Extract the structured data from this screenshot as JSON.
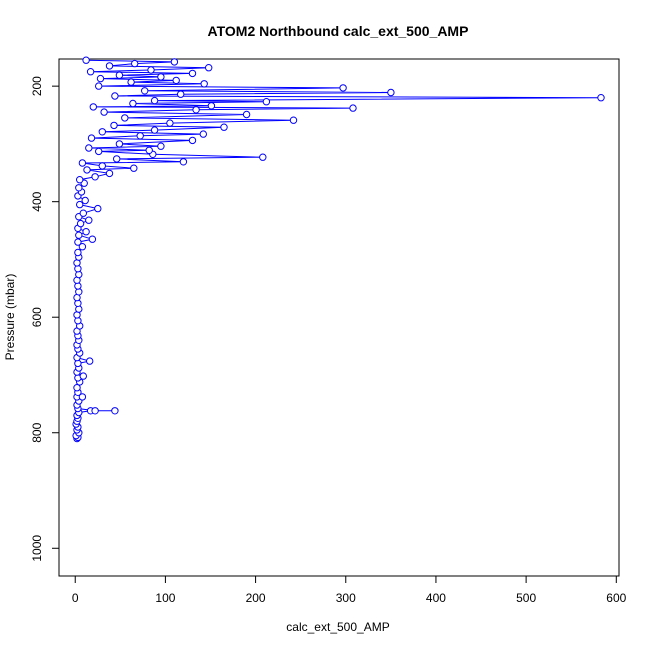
{
  "chart_data": {
    "type": "scatter",
    "title": "ATOM2 Northbound calc_ext_500_AMP",
    "xlabel": "calc_ext_500_AMP",
    "ylabel": "Pressure (mbar)",
    "xlim": [
      -18,
      603
    ],
    "ylim": [
      1048,
      153
    ],
    "y_inverted": true,
    "x_ticks": [
      0,
      100,
      200,
      300,
      400,
      500,
      600
    ],
    "y_ticks": [
      200,
      400,
      600,
      800,
      1000
    ],
    "grid": false,
    "legend": "none",
    "marker": "open-circle",
    "connected": true,
    "color": "#0000ff",
    "series": [
      {
        "points": [
          [
            2,
            810
          ],
          [
            3,
            808
          ],
          [
            1,
            805
          ],
          [
            4,
            800
          ],
          [
            2,
            795
          ],
          [
            3,
            790
          ],
          [
            1,
            785
          ],
          [
            2,
            780
          ],
          [
            3,
            775
          ],
          [
            2,
            770
          ],
          [
            4,
            765
          ],
          [
            17,
            762
          ],
          [
            44,
            762
          ],
          [
            22,
            762
          ],
          [
            3,
            758
          ],
          [
            2,
            752
          ],
          [
            4,
            745
          ],
          [
            2,
            738
          ],
          [
            8,
            738
          ],
          [
            3,
            730
          ],
          [
            2,
            722
          ],
          [
            5,
            712
          ],
          [
            3,
            705
          ],
          [
            9,
            702
          ],
          [
            2,
            695
          ],
          [
            4,
            688
          ],
          [
            3,
            680
          ],
          [
            16,
            676
          ],
          [
            2,
            670
          ],
          [
            5,
            662
          ],
          [
            3,
            655
          ],
          [
            2,
            648
          ],
          [
            4,
            640
          ],
          [
            3,
            632
          ],
          [
            2,
            624
          ],
          [
            5,
            615
          ],
          [
            3,
            606
          ],
          [
            2,
            596
          ],
          [
            4,
            586
          ],
          [
            3,
            576
          ],
          [
            2,
            566
          ],
          [
            4,
            556
          ],
          [
            3,
            546
          ],
          [
            2,
            536
          ],
          [
            4,
            526
          ],
          [
            3,
            516
          ],
          [
            2,
            506
          ],
          [
            4,
            496
          ],
          [
            3,
            488
          ],
          [
            8,
            478
          ],
          [
            3,
            470
          ],
          [
            19,
            465
          ],
          [
            4,
            458
          ],
          [
            12,
            452
          ],
          [
            3,
            446
          ],
          [
            6,
            438
          ],
          [
            15,
            432
          ],
          [
            4,
            426
          ],
          [
            9,
            420
          ],
          [
            25,
            412
          ],
          [
            5,
            405
          ],
          [
            11,
            398
          ],
          [
            3,
            390
          ],
          [
            7,
            383
          ],
          [
            4,
            376
          ],
          [
            10,
            368
          ],
          [
            5,
            362
          ],
          [
            22,
            357
          ],
          [
            38,
            351
          ],
          [
            13,
            345
          ],
          [
            65,
            342
          ],
          [
            30,
            338
          ],
          [
            8,
            333
          ],
          [
            120,
            331
          ],
          [
            46,
            326
          ],
          [
            208,
            323
          ],
          [
            86,
            318
          ],
          [
            26,
            313
          ],
          [
            82,
            311
          ],
          [
            15,
            307
          ],
          [
            95,
            304
          ],
          [
            49,
            300
          ],
          [
            130,
            294
          ],
          [
            18,
            290
          ],
          [
            72,
            286
          ],
          [
            142,
            283
          ],
          [
            30,
            279
          ],
          [
            88,
            276
          ],
          [
            165,
            271
          ],
          [
            43,
            268
          ],
          [
            105,
            264
          ],
          [
            242,
            259
          ],
          [
            55,
            255
          ],
          [
            190,
            249
          ],
          [
            32,
            245
          ],
          [
            134,
            241
          ],
          [
            308,
            238
          ],
          [
            20,
            236
          ],
          [
            151,
            234
          ],
          [
            64,
            230
          ],
          [
            212,
            227
          ],
          [
            88,
            225
          ],
          [
            583,
            220
          ],
          [
            44,
            217
          ],
          [
            117,
            214
          ],
          [
            350,
            211
          ],
          [
            77,
            208
          ],
          [
            297,
            203
          ],
          [
            26,
            200
          ],
          [
            143,
            196
          ],
          [
            62,
            193
          ],
          [
            112,
            190
          ],
          [
            28,
            187
          ],
          [
            95,
            184
          ],
          [
            49,
            181
          ],
          [
            130,
            178
          ],
          [
            17,
            175
          ],
          [
            84,
            172
          ],
          [
            148,
            168
          ],
          [
            38,
            165
          ],
          [
            66,
            161
          ],
          [
            110,
            158
          ],
          [
            12,
            155
          ]
        ]
      }
    ]
  }
}
